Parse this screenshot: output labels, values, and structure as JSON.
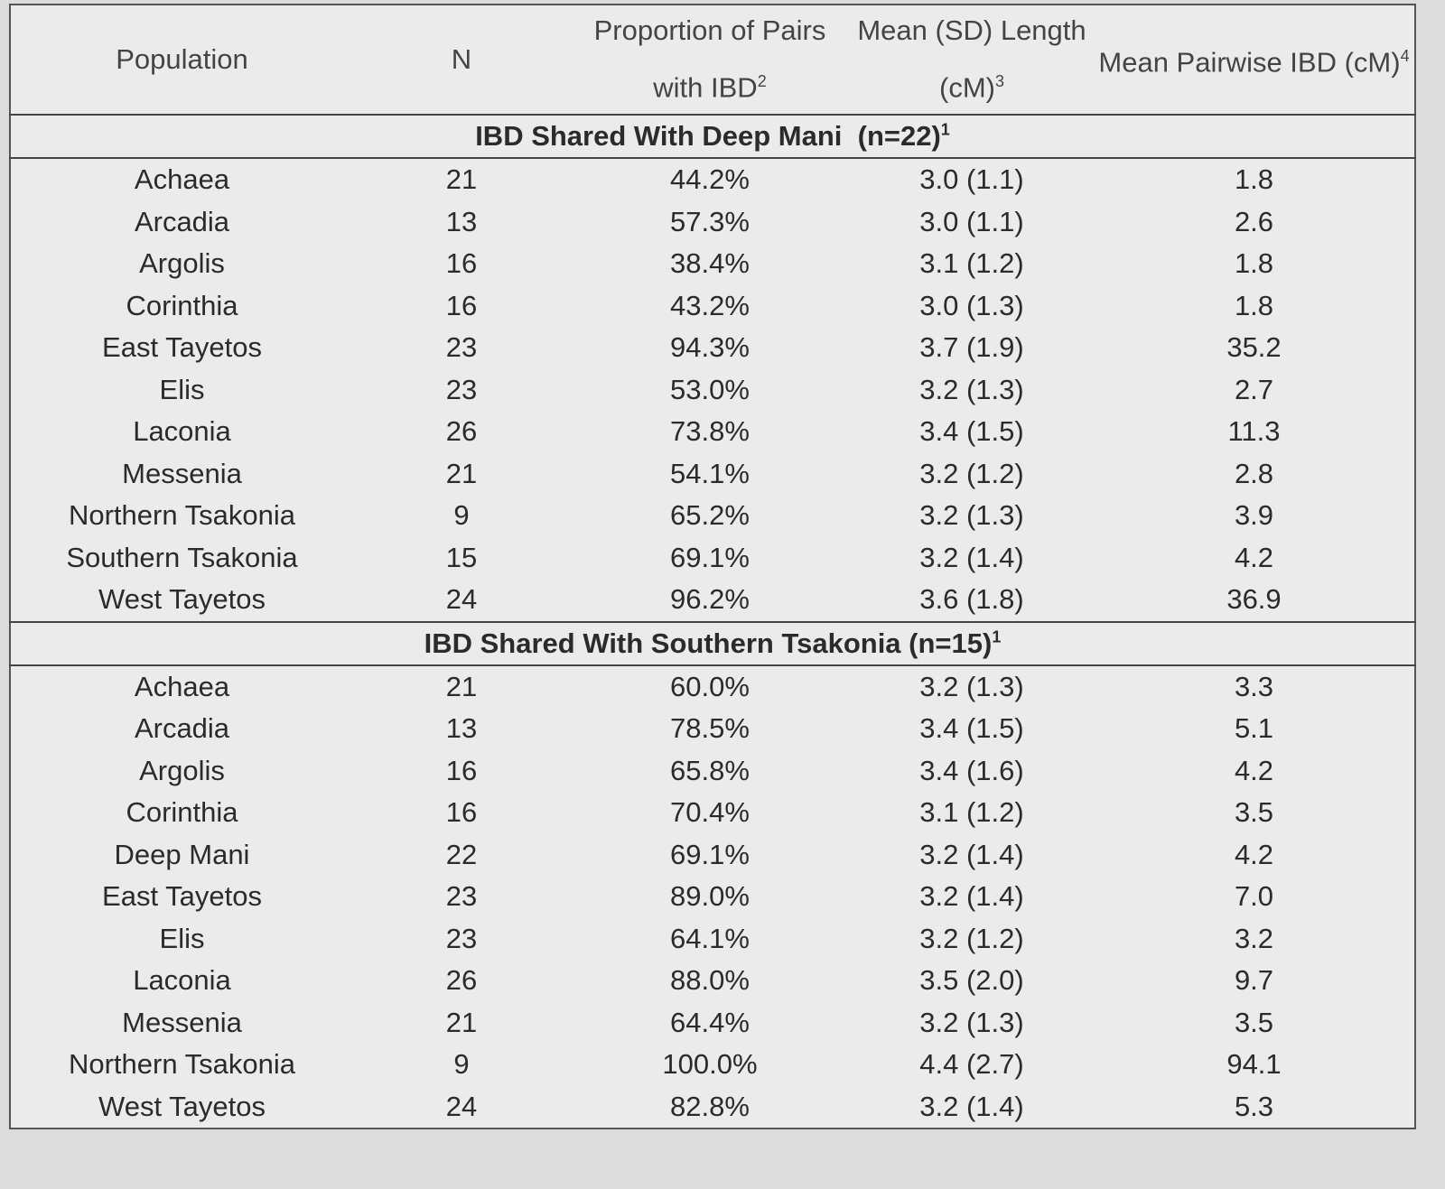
{
  "table": {
    "columns": [
      {
        "text": "Population"
      },
      {
        "text": "N"
      },
      {
        "text": "Proportion of Pairs with IBD",
        "note": "2"
      },
      {
        "text": "Mean (SD) Length (cM)",
        "note": "3"
      },
      {
        "text": "Mean Pairwise IBD (cM)",
        "note": "4"
      }
    ],
    "sections": [
      {
        "title": "IBD Shared With Deep Mani  (n=22)",
        "note": "1",
        "rows": [
          [
            "Achaea",
            "21",
            "44.2%",
            "3.0 (1.1)",
            "1.8"
          ],
          [
            "Arcadia",
            "13",
            "57.3%",
            "3.0 (1.1)",
            "2.6"
          ],
          [
            "Argolis",
            "16",
            "38.4%",
            "3.1 (1.2)",
            "1.8"
          ],
          [
            "Corinthia",
            "16",
            "43.2%",
            "3.0 (1.3)",
            "1.8"
          ],
          [
            "East Tayetos",
            "23",
            "94.3%",
            "3.7 (1.9)",
            "35.2"
          ],
          [
            "Elis",
            "23",
            "53.0%",
            "3.2 (1.3)",
            "2.7"
          ],
          [
            "Laconia",
            "26",
            "73.8%",
            "3.4 (1.5)",
            "11.3"
          ],
          [
            "Messenia",
            "21",
            "54.1%",
            "3.2 (1.2)",
            "2.8"
          ],
          [
            "Northern Tsakonia",
            "9",
            "65.2%",
            "3.2 (1.3)",
            "3.9"
          ],
          [
            "Southern Tsakonia",
            "15",
            "69.1%",
            "3.2 (1.4)",
            "4.2"
          ],
          [
            "West Tayetos",
            "24",
            "96.2%",
            "3.6 (1.8)",
            "36.9"
          ]
        ]
      },
      {
        "title": "IBD Shared With Southern Tsakonia (n=15)",
        "note": "1",
        "rows": [
          [
            "Achaea",
            "21",
            "60.0%",
            "3.2 (1.3)",
            "3.3"
          ],
          [
            "Arcadia",
            "13",
            "78.5%",
            "3.4 (1.5)",
            "5.1"
          ],
          [
            "Argolis",
            "16",
            "65.8%",
            "3.4 (1.6)",
            "4.2"
          ],
          [
            "Corinthia",
            "16",
            "70.4%",
            "3.1 (1.2)",
            "3.5"
          ],
          [
            "Deep Mani",
            "22",
            "69.1%",
            "3.2 (1.4)",
            "4.2"
          ],
          [
            "East Tayetos",
            "23",
            "89.0%",
            "3.2 (1.4)",
            "7.0"
          ],
          [
            "Elis",
            "23",
            "64.1%",
            "3.2 (1.2)",
            "3.2"
          ],
          [
            "Laconia",
            "26",
            "88.0%",
            "3.5 (2.0)",
            "9.7"
          ],
          [
            "Messenia",
            "21",
            "64.4%",
            "3.2 (1.3)",
            "3.5"
          ],
          [
            "Northern Tsakonia",
            "9",
            "100.0%",
            "4.4 (2.7)",
            "94.1"
          ],
          [
            "West Tayetos",
            "24",
            "82.8%",
            "3.2 (1.4)",
            "5.3"
          ]
        ]
      }
    ]
  }
}
